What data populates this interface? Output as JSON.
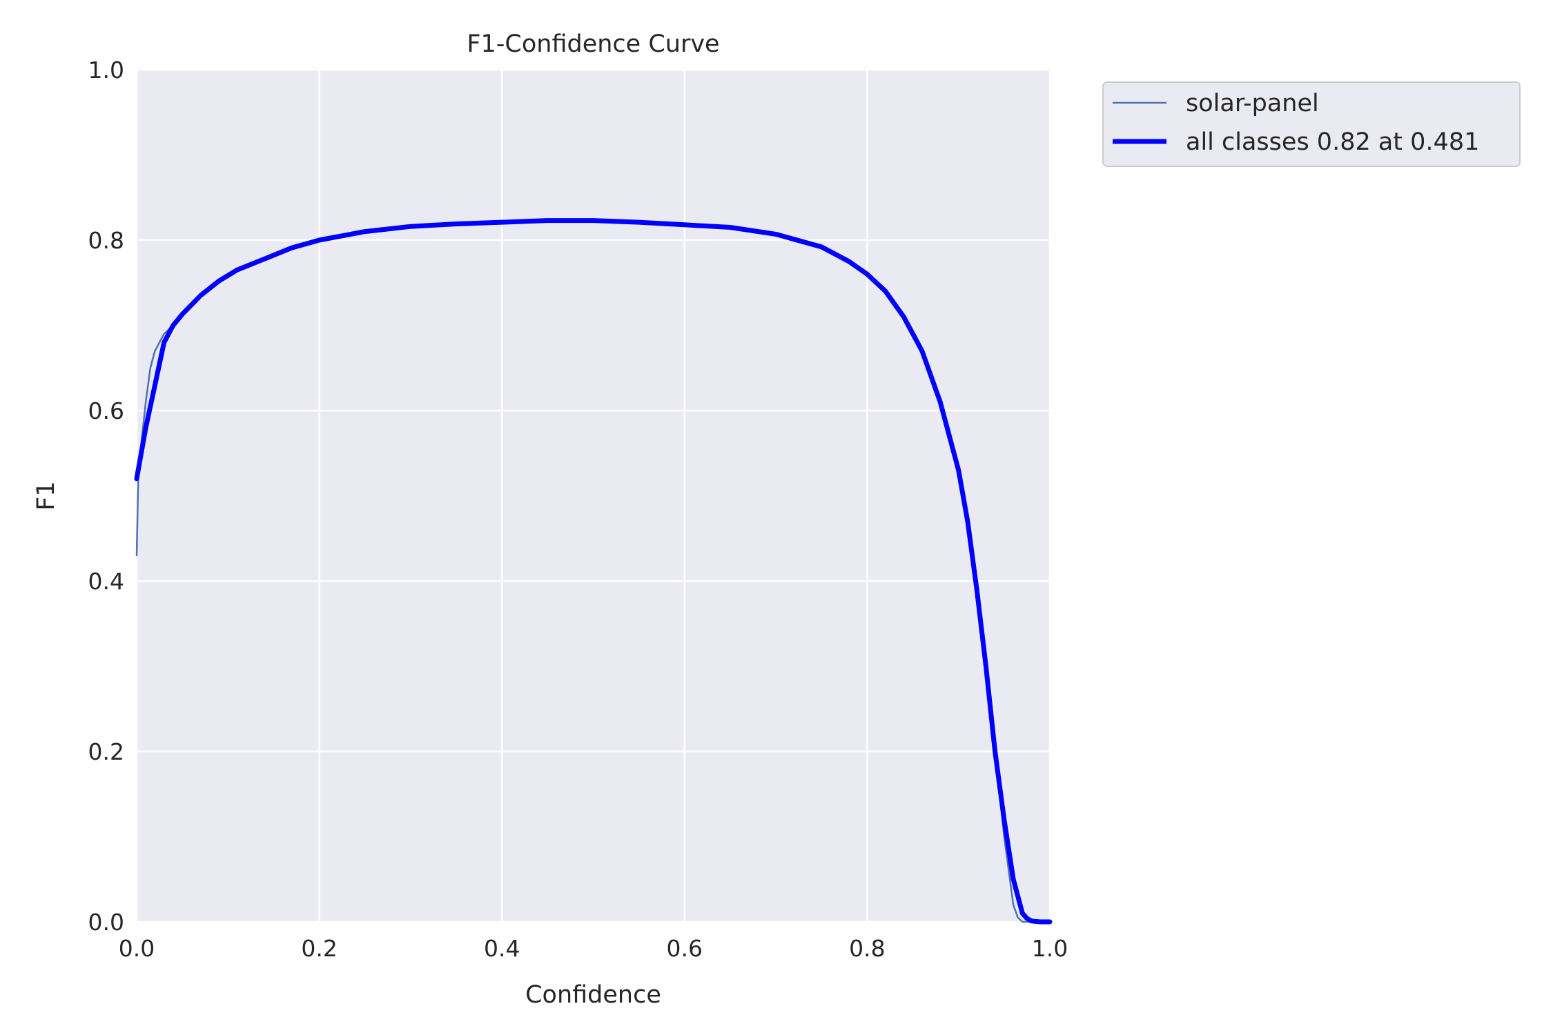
{
  "chart_data": {
    "type": "line",
    "title": "F1-Confidence Curve",
    "xlabel": "Confidence",
    "ylabel": "F1",
    "xlim": [
      0,
      1
    ],
    "ylim": [
      0,
      1
    ],
    "xticks": [
      "0.0",
      "0.2",
      "0.4",
      "0.6",
      "0.8",
      "1.0"
    ],
    "yticks": [
      "0.0",
      "0.2",
      "0.4",
      "0.6",
      "0.8",
      "1.0"
    ],
    "grid": true,
    "legend_position": "outside-top-right",
    "series": [
      {
        "name": "solar-panel",
        "color": "#4c72b0",
        "x": [
          0.0,
          0.002,
          0.005,
          0.01,
          0.015,
          0.02,
          0.03,
          0.04,
          0.05,
          0.07,
          0.09,
          0.11,
          0.14,
          0.17,
          0.2,
          0.25,
          0.3,
          0.35,
          0.4,
          0.45,
          0.5,
          0.55,
          0.6,
          0.65,
          0.7,
          0.75,
          0.78,
          0.8,
          0.82,
          0.84,
          0.86,
          0.88,
          0.9,
          0.91,
          0.92,
          0.93,
          0.94,
          0.95,
          0.96,
          0.965,
          0.97,
          0.975,
          0.98,
          1.0
        ],
        "values": [
          0.43,
          0.53,
          0.56,
          0.61,
          0.65,
          0.67,
          0.69,
          0.7,
          0.713,
          0.735,
          0.752,
          0.765,
          0.778,
          0.791,
          0.8,
          0.81,
          0.816,
          0.819,
          0.821,
          0.823,
          0.823,
          0.821,
          0.818,
          0.815,
          0.807,
          0.792,
          0.775,
          0.76,
          0.74,
          0.71,
          0.67,
          0.61,
          0.53,
          0.47,
          0.39,
          0.3,
          0.2,
          0.1,
          0.02,
          0.005,
          0.0,
          0.0,
          0.0,
          0.0
        ]
      },
      {
        "name": "all classes 0.82 at 0.481",
        "color": "#0000ff",
        "x": [
          0.0,
          0.005,
          0.01,
          0.02,
          0.03,
          0.04,
          0.05,
          0.07,
          0.09,
          0.11,
          0.14,
          0.17,
          0.2,
          0.25,
          0.3,
          0.35,
          0.4,
          0.45,
          0.481,
          0.5,
          0.55,
          0.6,
          0.65,
          0.7,
          0.75,
          0.78,
          0.8,
          0.82,
          0.84,
          0.86,
          0.88,
          0.9,
          0.91,
          0.92,
          0.93,
          0.94,
          0.95,
          0.96,
          0.97,
          0.975,
          0.98,
          0.99,
          1.0
        ],
        "values": [
          0.52,
          0.55,
          0.58,
          0.63,
          0.68,
          0.7,
          0.713,
          0.735,
          0.752,
          0.765,
          0.778,
          0.791,
          0.8,
          0.81,
          0.816,
          0.819,
          0.821,
          0.823,
          0.823,
          0.823,
          0.821,
          0.818,
          0.815,
          0.807,
          0.792,
          0.775,
          0.76,
          0.74,
          0.71,
          0.67,
          0.61,
          0.53,
          0.47,
          0.39,
          0.3,
          0.2,
          0.12,
          0.05,
          0.01,
          0.004,
          0.001,
          0.0,
          0.0
        ]
      }
    ]
  }
}
